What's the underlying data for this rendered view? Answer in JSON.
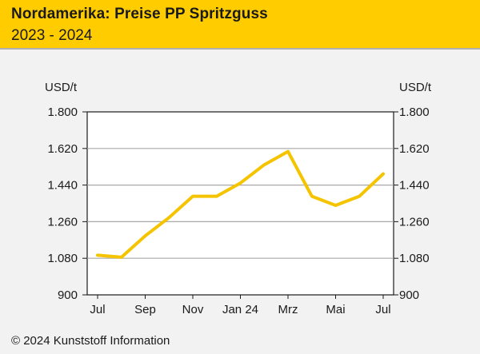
{
  "header": {
    "title": "Nordamerika: Preise PP Spritzguss",
    "subtitle": "2023 - 2024",
    "accent": "#ffcc00"
  },
  "footer": {
    "copyright": "© 2024 Kunststoff Information"
  },
  "chart_data": {
    "type": "line",
    "title": "Nordamerika: Preise PP Spritzguss",
    "subtitle": "2023 - 2024",
    "ylabel": "USD/t",
    "ylabel_right": "USD/t",
    "ylim": [
      900,
      1800
    ],
    "yticks": [
      900,
      1080,
      1260,
      1440,
      1620,
      1800
    ],
    "ytick_labels": [
      "900",
      "1.080",
      "1.260",
      "1.440",
      "1.620",
      "1.800"
    ],
    "xlim": [
      0,
      12
    ],
    "xticks": [
      0,
      2,
      4,
      6,
      8,
      10,
      12
    ],
    "xtick_labels": [
      "Jul",
      "Sep",
      "Nov",
      "Jan 24",
      "Mrz",
      "Mai",
      "Jul"
    ],
    "grid": true,
    "series": [
      {
        "name": "PP Spritzguss",
        "color": "#f5c400",
        "x": [
          0,
          1,
          2,
          3,
          4,
          5,
          6,
          7,
          8,
          9,
          10,
          11,
          12
        ],
        "values": [
          1095,
          1085,
          1190,
          1280,
          1385,
          1385,
          1450,
          1540,
          1605,
          1385,
          1340,
          1385,
          1495
        ]
      }
    ]
  }
}
